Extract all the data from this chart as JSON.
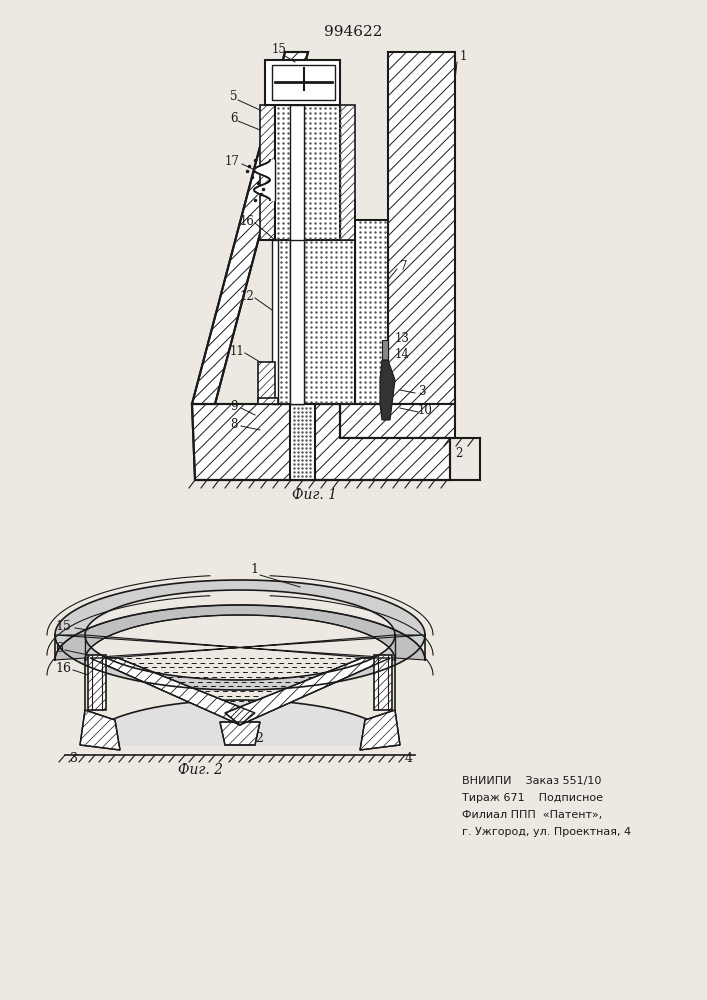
{
  "title": "994622",
  "fig1_label": "Фиг. 1",
  "fig2_label": "Фиг. 2",
  "footer_line1": "ВНИИПИ    Заказ 551/10",
  "footer_line2": "Тираж 671    Подписное",
  "footer_line3": "Филиал ППП  «Патент»,",
  "footer_line4": "г. Ужгород, ул. Проектная, 4",
  "bg_color": "#ede9e2",
  "line_color": "#1a1a1a"
}
